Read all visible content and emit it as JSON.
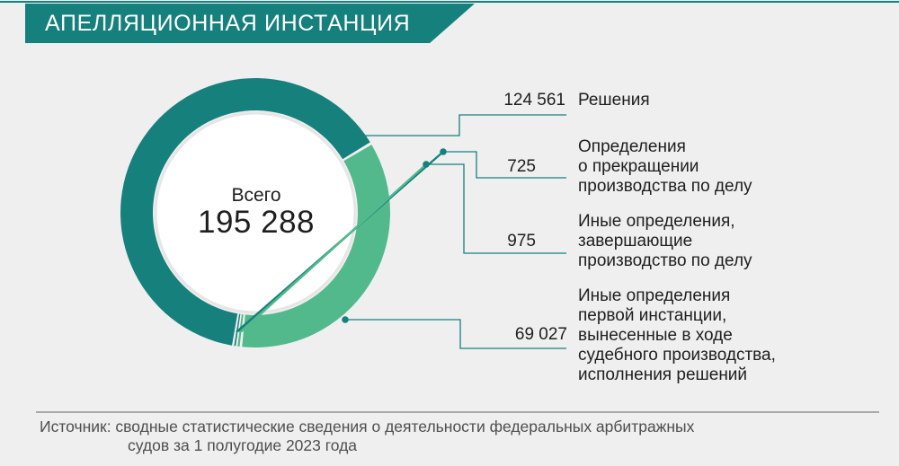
{
  "header": {
    "title": "АПЕЛЛЯЦИОННАЯ ИНСТАНЦИЯ"
  },
  "colors": {
    "teal": "#16807d",
    "green": "#52b98c",
    "line": "#16807d",
    "banner": "#16807d"
  },
  "chart_data": {
    "type": "pie",
    "variant": "donut",
    "total_label": "Всего",
    "total_value": "195 288",
    "total": 195288,
    "slices": [
      {
        "label": "Решения",
        "value_text": "124 561",
        "value": 124561,
        "color": "#16807d"
      },
      {
        "label": "Определения о прекращении производства по делу",
        "lines": [
          "Определения",
          "о прекращении",
          "производства по делу"
        ],
        "value_text": "725",
        "value": 725,
        "color": "#16807d"
      },
      {
        "label": "Иные определения, завершающие производство по делу",
        "lines": [
          "Иные определения,",
          "завершающие",
          "производство по делу"
        ],
        "value_text": "975",
        "value": 975,
        "color": "#52b98c"
      },
      {
        "label": "Иные определения первой инстанции, вынесенные в ходе судебного производства, исполнения решений",
        "lines": [
          "Иные определения",
          "первой инстанции,",
          "вынесенные в ходе",
          "судебного производства,",
          "исполнения решений"
        ],
        "value_text": "69 027",
        "value": 69027,
        "color": "#52b98c"
      }
    ]
  },
  "footer": {
    "source_line1": "Источник: сводные статистические сведения о деятельности федеральных арбитражных",
    "source_line2": "судов за 1 полугодие 2023 года"
  }
}
